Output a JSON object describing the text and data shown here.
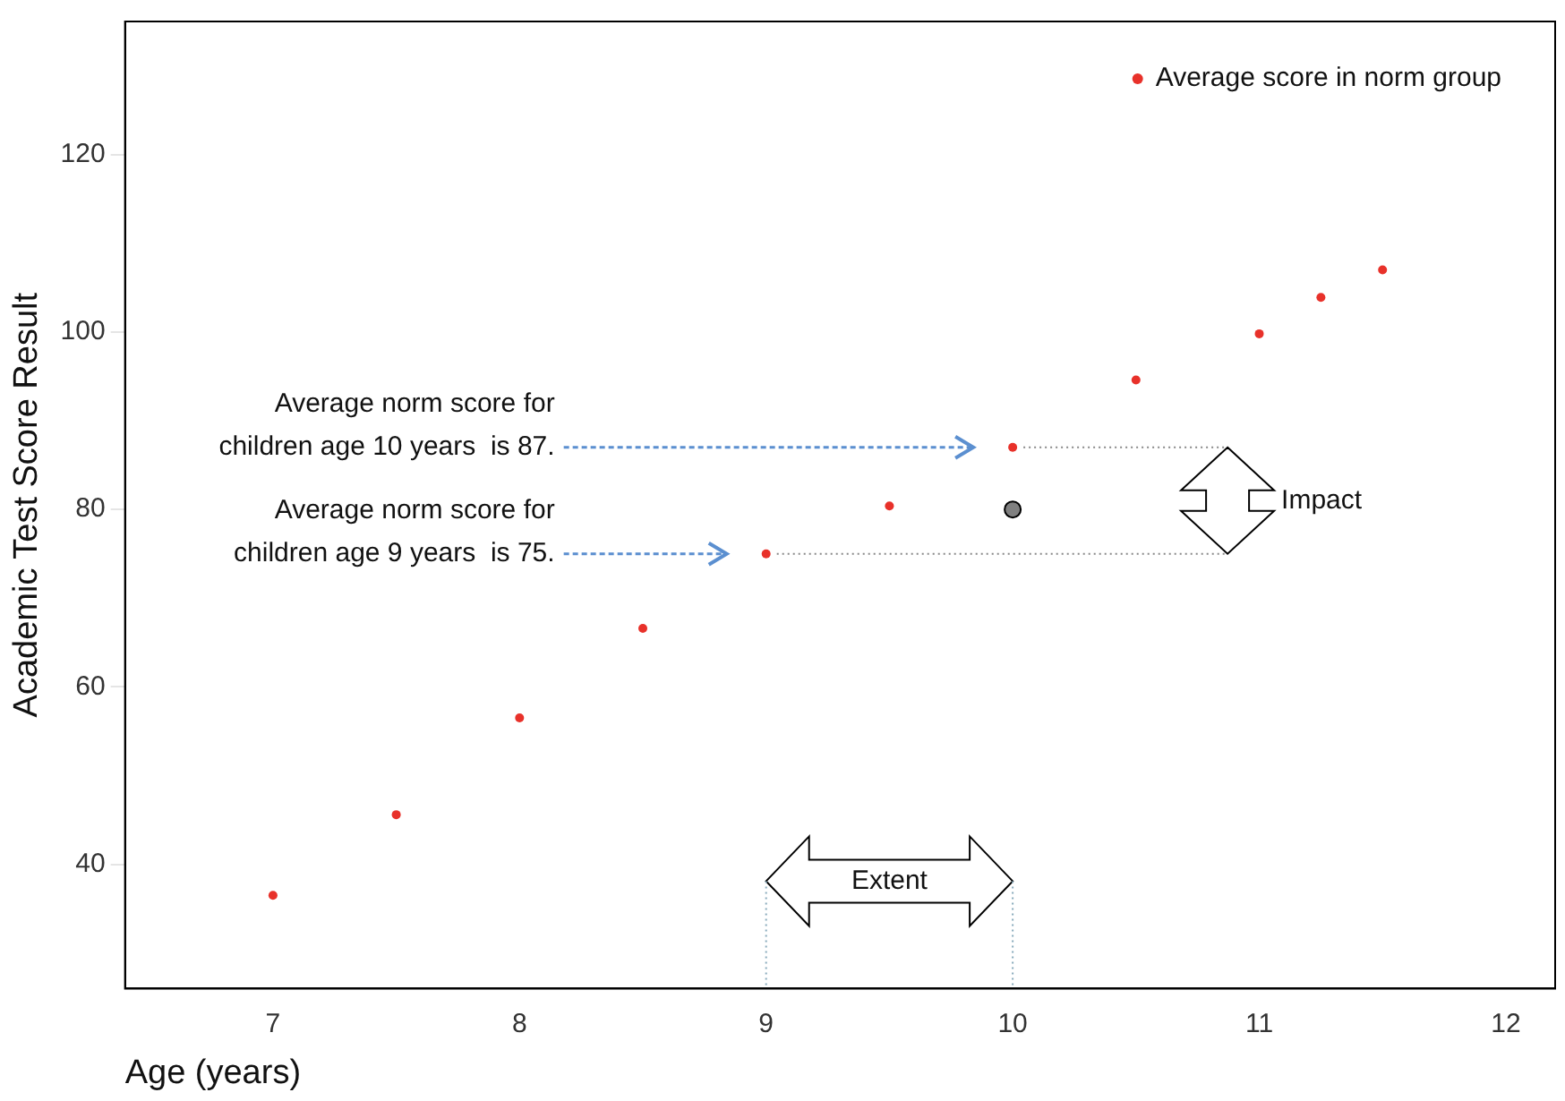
{
  "chart_data": {
    "type": "scatter",
    "xlabel": "Age (years)",
    "ylabel": "Academic Test Score Result",
    "series": [
      {
        "name": "Average score in norm group",
        "color": "#e8312a",
        "x": [
          7,
          7.5,
          8,
          8.5,
          9,
          9.5,
          10,
          10.5,
          11,
          11.25,
          11.5
        ],
        "values": [
          36.5,
          45.6,
          56.5,
          66.6,
          75,
          80.4,
          87,
          94.6,
          99.8,
          103.9,
          107
        ]
      },
      {
        "color": "#808080",
        "x": [
          10
        ],
        "values": [
          80
        ]
      }
    ],
    "xlim": [
      6.4,
      12.2
    ],
    "ylim": [
      26,
      135
    ],
    "xticks": [
      7,
      8,
      9,
      10,
      11,
      12
    ],
    "yticks": [
      40,
      60,
      80,
      100,
      120
    ],
    "grid": false,
    "legend": "top right",
    "marker": "circle",
    "annotations": [
      "Average norm score for\nchildren age 10 years  is 87.",
      "Average norm score for\nchildren age 9 years  is 75.",
      "Impact",
      "Extent"
    ]
  }
}
